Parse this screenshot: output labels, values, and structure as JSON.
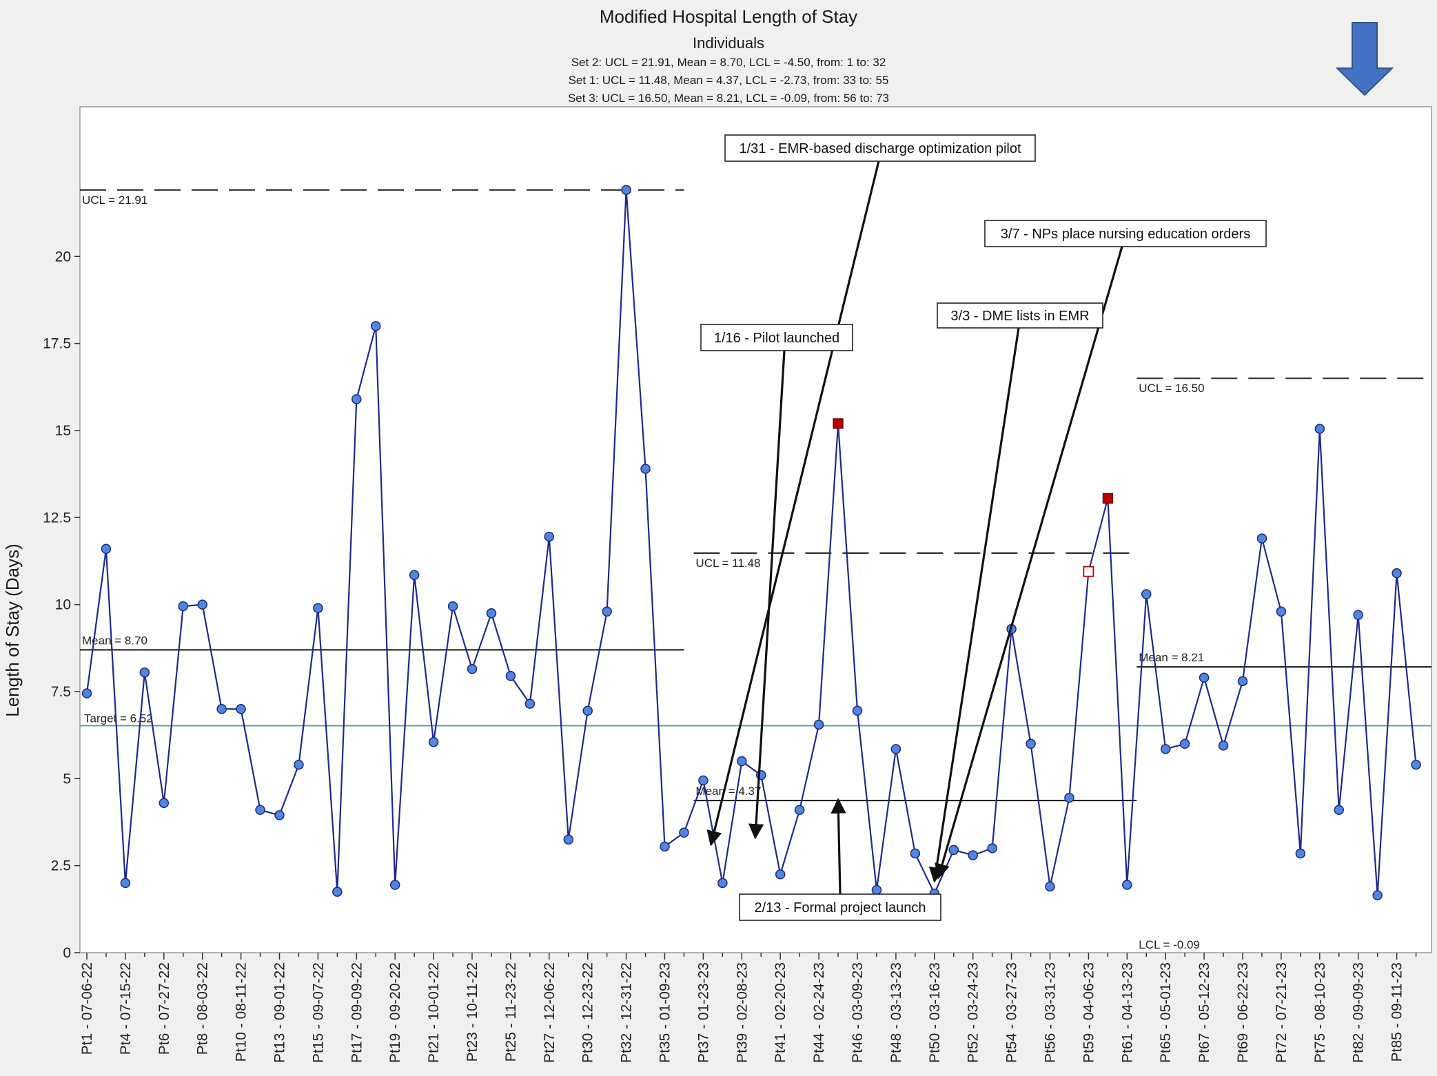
{
  "chart_data": {
    "type": "line",
    "title": "Modified Hospital Length of Stay",
    "subtitle": "Individuals",
    "set_lines": [
      "Set 2: UCL = 21.91, Mean = 8.70, LCL = -4.50, from: 1 to: 32",
      "Set 1: UCL = 11.48, Mean = 4.37, LCL = -2.73, from: 33 to: 55",
      "Set 3: UCL = 16.50, Mean = 8.21, LCL = -0.09, from: 56 to: 73"
    ],
    "ylabel": "Length of Stay (Days)",
    "ylim": [
      0,
      24.3
    ],
    "yticks": [
      0,
      2.5,
      5,
      7.5,
      10,
      12.5,
      15,
      17.5,
      20
    ],
    "ytick_labels": [
      "0",
      "2.5",
      "5",
      "7.5",
      "10",
      "12.5",
      "15",
      "17.5",
      "20"
    ],
    "x_labels": [
      "Pt1 - 07-06-22",
      "Pt4 - 07-15-22",
      "Pt6 - 07-27-22",
      "Pt8 - 08-03-22",
      "Pt10 - 08-11-22",
      "Pt13 - 09-01-22",
      "Pt15 - 09-07-22",
      "Pt17 - 09-09-22",
      "Pt19 - 09-20-22",
      "Pt21 - 10-01-22",
      "Pt23 - 10-11-22",
      "Pt25 - 11-23-22",
      "Pt27 - 12-06-22",
      "Pt30 - 12-23-22",
      "Pt32 - 12-31-22",
      "Pt35 - 01-09-23",
      "Pt37 - 01-23-23",
      "Pt39 - 02-08-23",
      "Pt41 - 02-20-23",
      "Pt44 - 02-24-23",
      "Pt46 - 03-09-23",
      "Pt48 - 03-13-23",
      "Pt50 - 03-16-23",
      "Pt52 - 03-24-23",
      "Pt54 - 03-27-23",
      "Pt56 - 03-31-23",
      "Pt59 - 04-06-23",
      "Pt61 - 04-13-23",
      "Pt65 - 05-01-23",
      "Pt67 - 05-12-23",
      "Pt69 - 06-22-23",
      "Pt72 - 07-21-23",
      "Pt75 - 08-10-23",
      "Pt82 - 09-09-23",
      "Pt85 - 09-11-23"
    ],
    "x_label_every": 2,
    "values": [
      7.45,
      11.6,
      2.0,
      8.05,
      4.3,
      9.95,
      10.0,
      7.0,
      7.0,
      4.1,
      3.95,
      5.4,
      9.9,
      1.75,
      15.9,
      18.0,
      1.95,
      10.85,
      6.05,
      9.95,
      8.15,
      9.75,
      7.95,
      7.15,
      11.95,
      3.25,
      6.95,
      9.8,
      21.91,
      13.9,
      3.05,
      3.45,
      4.95,
      2.0,
      5.5,
      5.1,
      2.25,
      4.1,
      6.55,
      15.2,
      6.95,
      1.8,
      5.85,
      2.85,
      1.7,
      2.95,
      2.8,
      3.0,
      9.3,
      6.0,
      1.9,
      4.45,
      10.95,
      13.05,
      1.95,
      10.3,
      5.85,
      6.0,
      7.9,
      5.95,
      7.8,
      11.9,
      9.8,
      2.85,
      15.05,
      4.1,
      9.7,
      1.65,
      10.9,
      5.4
    ],
    "flagged_points": [
      {
        "index": 39,
        "style": "filled-red"
      },
      {
        "index": 52,
        "style": "hollow-red"
      },
      {
        "index": 53,
        "style": "filled-red"
      }
    ],
    "control_sets": [
      {
        "name": "Set 2",
        "ucl": 21.91,
        "mean": 8.7,
        "lcl": -4.5,
        "start": 0,
        "end": 31,
        "ucl_label": "UCL = 21.91",
        "mean_label": "Mean = 8.70",
        "lcl_label": ""
      },
      {
        "name": "Set 1",
        "ucl": 11.48,
        "mean": 4.37,
        "lcl": -2.73,
        "start": 31.5,
        "end": 54.5,
        "ucl_label": "UCL = 11.48",
        "mean_label": "Mean = 4.37",
        "lcl_label": ""
      },
      {
        "name": "Set 3",
        "ucl": 16.5,
        "mean": 8.21,
        "lcl": -0.09,
        "start": 54.5,
        "end": 69.5,
        "ucl_label": "UCL = 16.50",
        "mean_label": "Mean = 8.21",
        "lcl_label": "LCL = -0.09"
      }
    ],
    "target": {
      "value": 6.52,
      "label": "Target = 6.52",
      "color": "#3a9a9a"
    },
    "annotations": [
      {
        "text": "1/31 - EMR-based discharge optimization pilot",
        "x": 32.4,
        "y": 3.1
      },
      {
        "text": "1/16 - Pilot launched",
        "x": 34.7,
        "y": 3.3
      },
      {
        "text": "3/7 - NPs place nursing education orders",
        "x": 44.2,
        "y": 2.15
      },
      {
        "text": "3/3 - DME lists in EMR",
        "x": 44.0,
        "y": 2.05
      },
      {
        "text": "2/13 - Formal project launch",
        "x": 39.0,
        "y": 4.4
      }
    ],
    "colors": {
      "line": "#1f2a8a",
      "marker": "#4f86e6",
      "flag": "#c00000",
      "arrow_icon": "#4472c4"
    },
    "icons": [
      "down-arrow-icon"
    ],
    "grid": false,
    "legend": "none"
  }
}
